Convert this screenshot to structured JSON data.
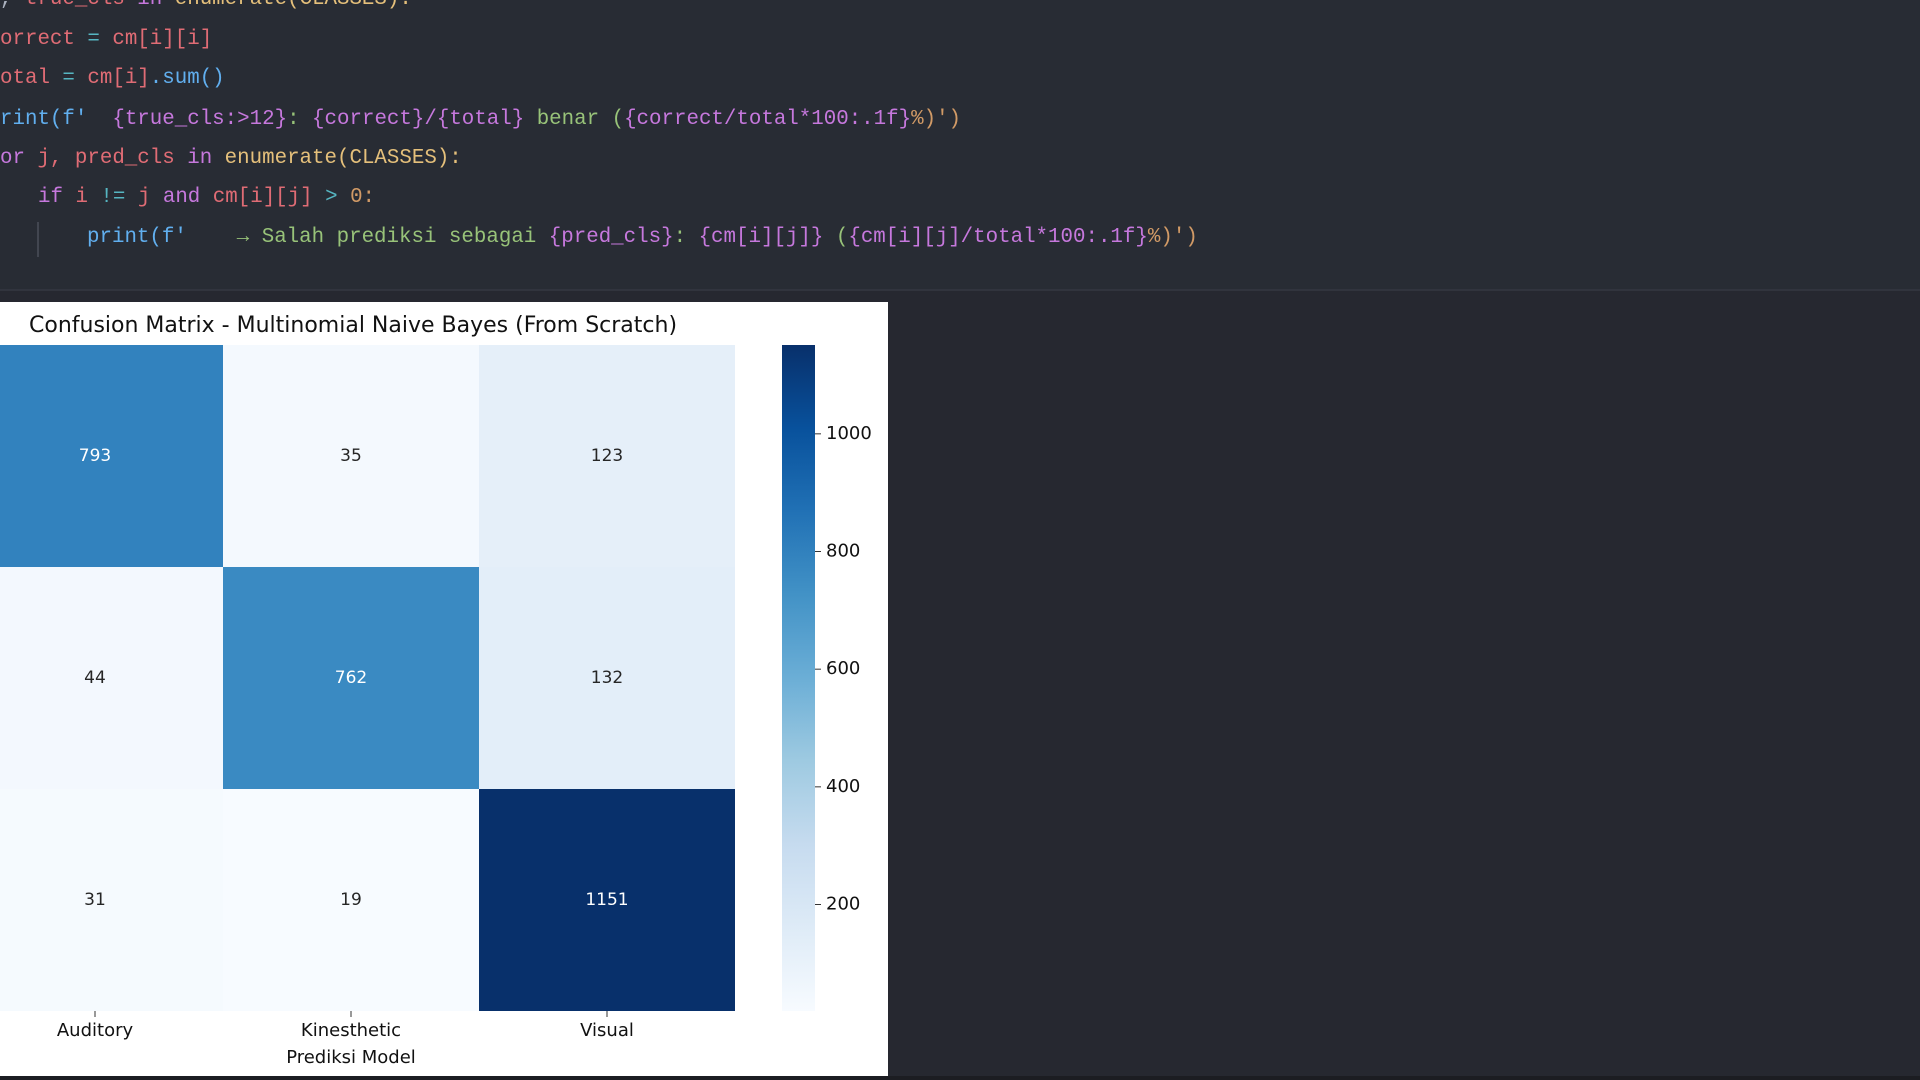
{
  "code": {
    "lines": [
      {
        "segments": [
          {
            "text": ", ",
            "color": "#abb2bf"
          },
          {
            "text": "true_cls",
            "color": "#e06c75"
          },
          {
            "text": " in ",
            "color": "#c678dd"
          },
          {
            "text": "enumerate(CLASSES):",
            "color": "#e5c07b"
          }
        ]
      },
      {
        "segments": [
          {
            "text": "orrect",
            "color": "#e06c75"
          },
          {
            "text": " = ",
            "color": "#56b6c2"
          },
          {
            "text": "cm[i][i]",
            "color": "#e06c75"
          }
        ]
      },
      {
        "segments": [
          {
            "text": "otal",
            "color": "#e06c75"
          },
          {
            "text": " = ",
            "color": "#56b6c2"
          },
          {
            "text": "cm[i]",
            "color": "#e06c75"
          },
          {
            "text": ".sum()",
            "color": "#61afef"
          }
        ]
      },
      {
        "segments": [
          {
            "text": "rint(f'",
            "color": "#61afef"
          },
          {
            "text": "  ",
            "color": "#98c379"
          },
          {
            "text": "{true_cls:>12}",
            "color": "#c678dd"
          },
          {
            "text": ": ",
            "color": "#98c379"
          },
          {
            "text": "{correct}/{total}",
            "color": "#c678dd"
          },
          {
            "text": " benar (",
            "color": "#98c379"
          },
          {
            "text": "{correct/total*100:.1f}",
            "color": "#c678dd"
          },
          {
            "text": "%)')",
            "color": "#d19a66"
          }
        ]
      },
      {
        "segments": [
          {
            "text": "or",
            "color": "#c678dd"
          },
          {
            "text": " j, pred_cls ",
            "color": "#e06c75"
          },
          {
            "text": "in",
            "color": "#c678dd"
          },
          {
            "text": " enumerate(CLASSES):",
            "color": "#e5c07b"
          }
        ]
      },
      {
        "segments": [
          {
            "text": "if",
            "color": "#c678dd"
          },
          {
            "text": " i ",
            "color": "#e06c75"
          },
          {
            "text": "!=",
            "color": "#56b6c2"
          },
          {
            "text": " j ",
            "color": "#e06c75"
          },
          {
            "text": "and",
            "color": "#c678dd"
          },
          {
            "text": " cm[i][j] ",
            "color": "#e06c75"
          },
          {
            "text": ">",
            "color": "#56b6c2"
          },
          {
            "text": " 0:",
            "color": "#d19a66"
          }
        ]
      },
      {
        "segments": [
          {
            "text": "print(f'",
            "color": "#61afef"
          },
          {
            "text": "    → Salah prediksi sebagai ",
            "color": "#98c379"
          },
          {
            "text": "{pred_cls}",
            "color": "#c678dd"
          },
          {
            "text": ": ",
            "color": "#98c379"
          },
          {
            "text": "{cm[i][j]}",
            "color": "#c678dd"
          },
          {
            "text": " (",
            "color": "#98c379"
          },
          {
            "text": "{cm[i][j]/total*100:.1f}",
            "color": "#c678dd"
          },
          {
            "text": "%)')",
            "color": "#d19a66"
          }
        ]
      }
    ]
  },
  "chart_data": {
    "type": "heatmap",
    "title": "Confusion Matrix - Multinomial Naive Bayes (From Scratch)",
    "categories": [
      "Auditory",
      "Kinesthetic",
      "Visual"
    ],
    "x_label": "Prediksi Model",
    "values": [
      [
        793,
        35,
        123
      ],
      [
        44,
        762,
        132
      ],
      [
        31,
        19,
        1151
      ]
    ],
    "colormap": "Blues",
    "clim": [
      19,
      1151
    ],
    "cticks": [
      200,
      400,
      600,
      800,
      1000
    ]
  }
}
